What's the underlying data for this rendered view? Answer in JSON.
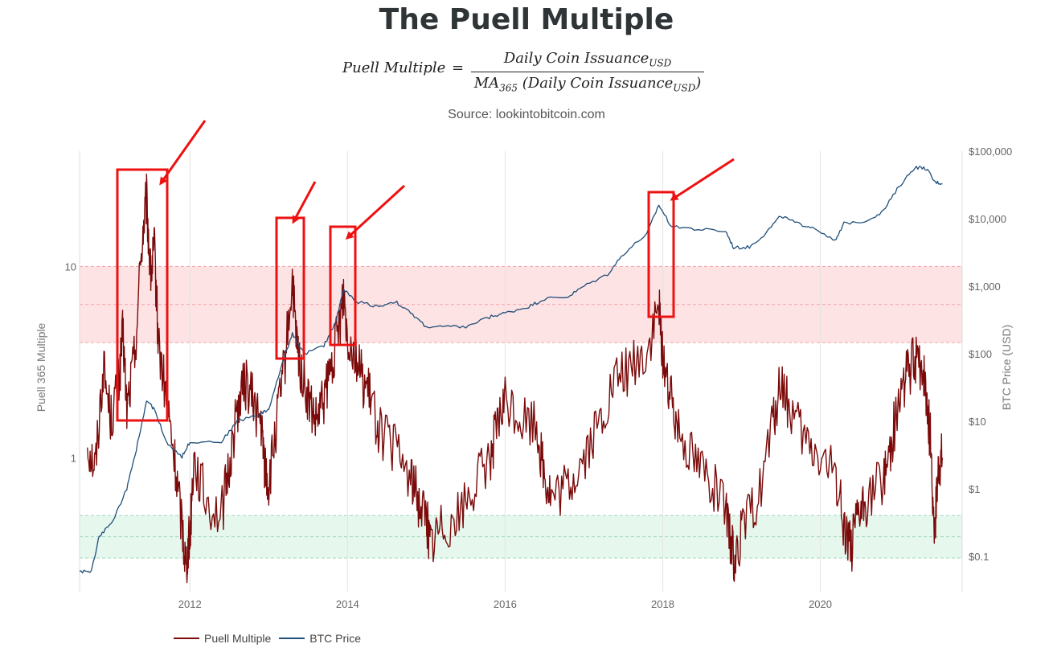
{
  "title": "The Puell Multiple",
  "formula": {
    "lhs": "Puell Multiple",
    "eq": "=",
    "num_main": "Daily Coin Issuance",
    "num_sub": "USD",
    "den_ma": "MA",
    "den_ma_sub": "365",
    "den_main": "(Daily Coin Issuance",
    "den_sub": "USD",
    "den_close": ")"
  },
  "source": "Source: lookintobitcoin.com",
  "colors": {
    "puell": "#7b0a0a",
    "btc": "#1f4e79",
    "red_band": "#fde3e4",
    "green_band": "#e6f7ee",
    "annotation": "#ee1111"
  },
  "chart_data": {
    "type": "line",
    "xlabel": "",
    "ylabel_left": "Puell 365 Multiple",
    "ylabel_right": "BTC Price (USD)",
    "x_ticks": [
      "2012",
      "2014",
      "2016",
      "2018",
      "2020"
    ],
    "y_left_ticks": [
      "10",
      "1"
    ],
    "y_right_ticks": [
      "$100,000",
      "$10,000",
      "$1,000",
      "$100",
      "$10",
      "$1",
      "$0.1"
    ],
    "y_left_scale": "log",
    "y_right_scale": "log",
    "xlim": [
      2010.6,
      2021.8
    ],
    "y_left_lim": [
      0.2,
      40
    ],
    "y_right_lim": [
      0.03,
      100000
    ],
    "bands": [
      {
        "axis": "left",
        "from": 4,
        "to": 10,
        "color": "red"
      },
      {
        "axis": "left",
        "from": 0.3,
        "to": 0.5,
        "color": "green"
      }
    ],
    "legend_position": "bottom-left",
    "series": [
      {
        "name": "Puell Multiple",
        "axis": "left",
        "points": [
          [
            2010.7,
            1.2
          ],
          [
            2010.8,
            0.9
          ],
          [
            2010.9,
            3.0
          ],
          [
            2011.0,
            1.6
          ],
          [
            2011.1,
            2.5
          ],
          [
            2011.15,
            4.5
          ],
          [
            2011.2,
            1.8
          ],
          [
            2011.3,
            3.5
          ],
          [
            2011.4,
            15
          ],
          [
            2011.45,
            22
          ],
          [
            2011.5,
            9
          ],
          [
            2011.55,
            12
          ],
          [
            2011.6,
            4
          ],
          [
            2011.7,
            2.0
          ],
          [
            2011.8,
            1.0
          ],
          [
            2011.9,
            0.45
          ],
          [
            2011.95,
            0.28
          ],
          [
            2012.0,
            0.4
          ],
          [
            2012.05,
            1.0
          ],
          [
            2012.2,
            0.6
          ],
          [
            2012.4,
            0.5
          ],
          [
            2012.5,
            0.9
          ],
          [
            2012.6,
            1.8
          ],
          [
            2012.7,
            2.5
          ],
          [
            2012.8,
            2.0
          ],
          [
            2012.9,
            1.5
          ],
          [
            2012.95,
            0.9
          ],
          [
            2013.0,
            0.7
          ],
          [
            2013.1,
            1.5
          ],
          [
            2013.2,
            3.0
          ],
          [
            2013.3,
            8.5
          ],
          [
            2013.35,
            4
          ],
          [
            2013.4,
            3.0
          ],
          [
            2013.5,
            2.0
          ],
          [
            2013.6,
            1.5
          ],
          [
            2013.7,
            2.0
          ],
          [
            2013.8,
            3.0
          ],
          [
            2013.9,
            5
          ],
          [
            2013.95,
            7.5
          ],
          [
            2014.0,
            4.5
          ],
          [
            2014.1,
            3.5
          ],
          [
            2014.2,
            2.5
          ],
          [
            2014.3,
            2.0
          ],
          [
            2014.4,
            1.4
          ],
          [
            2014.6,
            1.1
          ],
          [
            2014.8,
            0.8
          ],
          [
            2014.9,
            0.6
          ],
          [
            2015.0,
            0.5
          ],
          [
            2015.05,
            0.35
          ],
          [
            2015.2,
            0.45
          ],
          [
            2015.4,
            0.5
          ],
          [
            2015.6,
            0.7
          ],
          [
            2015.8,
            1.0
          ],
          [
            2015.9,
            1.4
          ],
          [
            2016.0,
            2.0
          ],
          [
            2016.2,
            1.6
          ],
          [
            2016.4,
            1.5
          ],
          [
            2016.5,
            0.8
          ],
          [
            2016.6,
            0.6
          ],
          [
            2016.8,
            0.7
          ],
          [
            2017.0,
            1.0
          ],
          [
            2017.2,
            1.5
          ],
          [
            2017.4,
            2.5
          ],
          [
            2017.6,
            3.0
          ],
          [
            2017.8,
            3.5
          ],
          [
            2017.95,
            6
          ],
          [
            2018.0,
            3.5
          ],
          [
            2018.1,
            2.0
          ],
          [
            2018.2,
            1.5
          ],
          [
            2018.4,
            1.0
          ],
          [
            2018.6,
            0.8
          ],
          [
            2018.8,
            0.5
          ],
          [
            2018.9,
            0.3
          ],
          [
            2019.0,
            0.4
          ],
          [
            2019.2,
            0.6
          ],
          [
            2019.4,
            1.5
          ],
          [
            2019.5,
            2.5
          ],
          [
            2019.6,
            1.8
          ],
          [
            2019.8,
            1.2
          ],
          [
            2020.0,
            1.0
          ],
          [
            2020.2,
            0.8
          ],
          [
            2020.3,
            0.45
          ],
          [
            2020.4,
            0.35
          ],
          [
            2020.5,
            0.5
          ],
          [
            2020.6,
            0.6
          ],
          [
            2020.8,
            0.8
          ],
          [
            2020.9,
            1.2
          ],
          [
            2021.0,
            2.0
          ],
          [
            2021.1,
            2.8
          ],
          [
            2021.2,
            3.2
          ],
          [
            2021.3,
            3.0
          ],
          [
            2021.35,
            2.0
          ],
          [
            2021.4,
            1.2
          ],
          [
            2021.45,
            0.4
          ],
          [
            2021.5,
            0.9
          ],
          [
            2021.55,
            1.0
          ]
        ]
      },
      {
        "name": "BTC Price",
        "axis": "right",
        "points": [
          [
            2010.6,
            0.06
          ],
          [
            2010.75,
            0.06
          ],
          [
            2010.85,
            0.2
          ],
          [
            2011.0,
            0.3
          ],
          [
            2011.2,
            1.0
          ],
          [
            2011.3,
            3
          ],
          [
            2011.45,
            20
          ],
          [
            2011.55,
            15
          ],
          [
            2011.7,
            5
          ],
          [
            2011.9,
            3
          ],
          [
            2012.0,
            5
          ],
          [
            2012.4,
            5
          ],
          [
            2012.6,
            10
          ],
          [
            2012.9,
            13
          ],
          [
            2013.0,
            15
          ],
          [
            2013.2,
            90
          ],
          [
            2013.3,
            200
          ],
          [
            2013.45,
            100
          ],
          [
            2013.7,
            130
          ],
          [
            2013.85,
            300
          ],
          [
            2013.95,
            900
          ],
          [
            2014.1,
            600
          ],
          [
            2014.4,
            500
          ],
          [
            2014.6,
            600
          ],
          [
            2014.8,
            400
          ],
          [
            2015.0,
            250
          ],
          [
            2015.2,
            250
          ],
          [
            2015.5,
            250
          ],
          [
            2015.8,
            350
          ],
          [
            2016.0,
            400
          ],
          [
            2016.3,
            500
          ],
          [
            2016.5,
            650
          ],
          [
            2016.8,
            700
          ],
          [
            2017.0,
            1000
          ],
          [
            2017.3,
            1500
          ],
          [
            2017.5,
            3000
          ],
          [
            2017.8,
            6000
          ],
          [
            2017.95,
            16000
          ],
          [
            2018.1,
            8000
          ],
          [
            2018.4,
            7000
          ],
          [
            2018.8,
            6500
          ],
          [
            2018.9,
            3700
          ],
          [
            2019.1,
            3800
          ],
          [
            2019.3,
            6000
          ],
          [
            2019.5,
            11000
          ],
          [
            2019.7,
            8500
          ],
          [
            2019.9,
            7500
          ],
          [
            2020.2,
            4800
          ],
          [
            2020.3,
            8500
          ],
          [
            2020.6,
            9500
          ],
          [
            2020.8,
            13000
          ],
          [
            2021.0,
            30000
          ],
          [
            2021.2,
            58000
          ],
          [
            2021.35,
            55000
          ],
          [
            2021.45,
            35000
          ],
          [
            2021.55,
            33000
          ]
        ]
      }
    ]
  },
  "legend": {
    "puell": "Puell Multiple",
    "btc": "BTC Price"
  }
}
